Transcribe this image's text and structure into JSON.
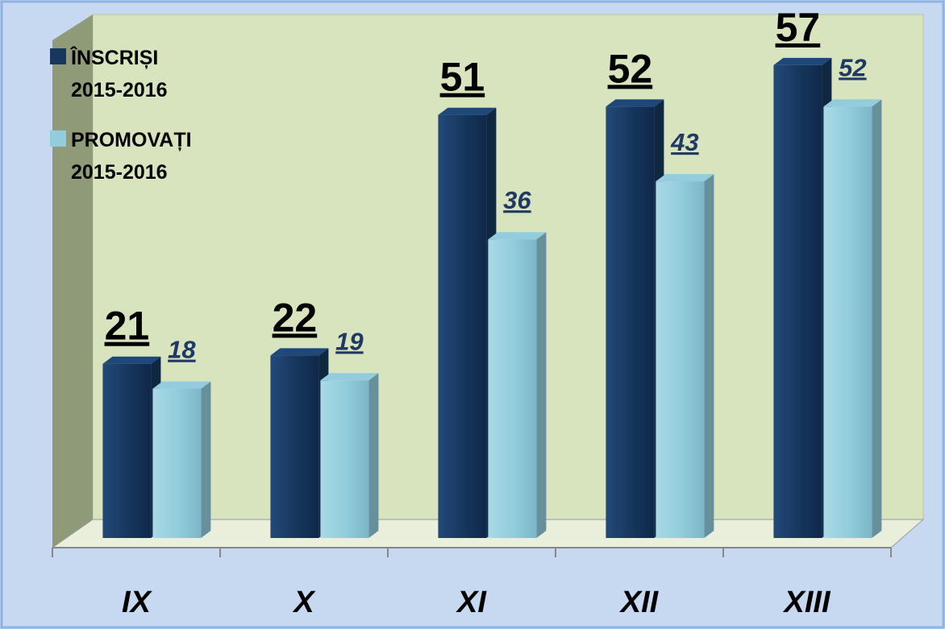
{
  "chart_data": {
    "type": "bar3d",
    "categories": [
      "IX",
      "X",
      "XI",
      "XII",
      "XIII"
    ],
    "series": [
      {
        "name": "ÎNSCRIȘI 2015-2016",
        "color": "#17375e",
        "values": [
          21,
          22,
          51,
          52,
          57
        ]
      },
      {
        "name": "PROMOVAȚI 2015-2016",
        "color": "#93cddd",
        "values": [
          18,
          19,
          36,
          43,
          52
        ]
      }
    ],
    "ylim": [
      0,
      60
    ],
    "legend": "top-left"
  }
}
